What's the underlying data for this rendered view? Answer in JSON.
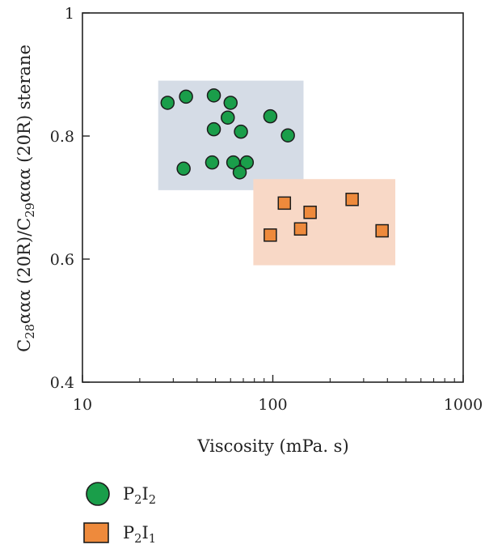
{
  "chart_data": {
    "type": "scatter",
    "title": "",
    "xlabel": "Viscosity (mPa. s)",
    "ylabel": {
      "parts": [
        {
          "text": "C"
        },
        {
          "text": "28",
          "sub": true
        },
        {
          "text": "ααα (20R)/C"
        },
        {
          "text": "29",
          "sub": true
        },
        {
          "text": "ααα (20R) sterane"
        }
      ]
    },
    "xscale": "log",
    "xlim": [
      10,
      1000
    ],
    "ylim": [
      0.4,
      1.0
    ],
    "xticks": [
      10,
      100,
      1000
    ],
    "xtick_labels": [
      "10",
      "100",
      "1000"
    ],
    "yticks": [
      0.4,
      0.6,
      0.8,
      1.0
    ],
    "ytick_labels": [
      "0.4",
      "0.6",
      "0.8",
      "1"
    ],
    "grid": false,
    "legend_position": "below-left",
    "series": [
      {
        "label_parts": [
          {
            "text": "P"
          },
          {
            "text": "2",
            "sub": true
          },
          {
            "text": "I"
          },
          {
            "text": "2",
            "sub": true
          }
        ],
        "marker": "circle",
        "color": "#1a9e4a",
        "region": {
          "x": [
            25,
            145
          ],
          "y": [
            0.712,
            0.89
          ],
          "color": "#d5dce6"
        },
        "points": [
          {
            "x": 28,
            "y": 0.854
          },
          {
            "x": 35,
            "y": 0.864
          },
          {
            "x": 49,
            "y": 0.866
          },
          {
            "x": 60,
            "y": 0.854
          },
          {
            "x": 58,
            "y": 0.83
          },
          {
            "x": 97,
            "y": 0.832
          },
          {
            "x": 49,
            "y": 0.811
          },
          {
            "x": 68,
            "y": 0.807
          },
          {
            "x": 120,
            "y": 0.801
          },
          {
            "x": 34,
            "y": 0.747
          },
          {
            "x": 48,
            "y": 0.757
          },
          {
            "x": 62,
            "y": 0.757
          },
          {
            "x": 73,
            "y": 0.757
          },
          {
            "x": 67,
            "y": 0.741
          }
        ]
      },
      {
        "label_parts": [
          {
            "text": "P"
          },
          {
            "text": "2",
            "sub": true
          },
          {
            "text": "I"
          },
          {
            "text": "1",
            "sub": true
          }
        ],
        "marker": "square",
        "color": "#ee8a3c",
        "region": {
          "x": [
            79,
            440
          ],
          "y": [
            0.59,
            0.73
          ],
          "color": "#f8d8c6"
        },
        "points": [
          {
            "x": 115,
            "y": 0.691
          },
          {
            "x": 157,
            "y": 0.676
          },
          {
            "x": 261,
            "y": 0.697
          },
          {
            "x": 97,
            "y": 0.639
          },
          {
            "x": 140,
            "y": 0.649
          },
          {
            "x": 375,
            "y": 0.646
          }
        ]
      }
    ]
  }
}
